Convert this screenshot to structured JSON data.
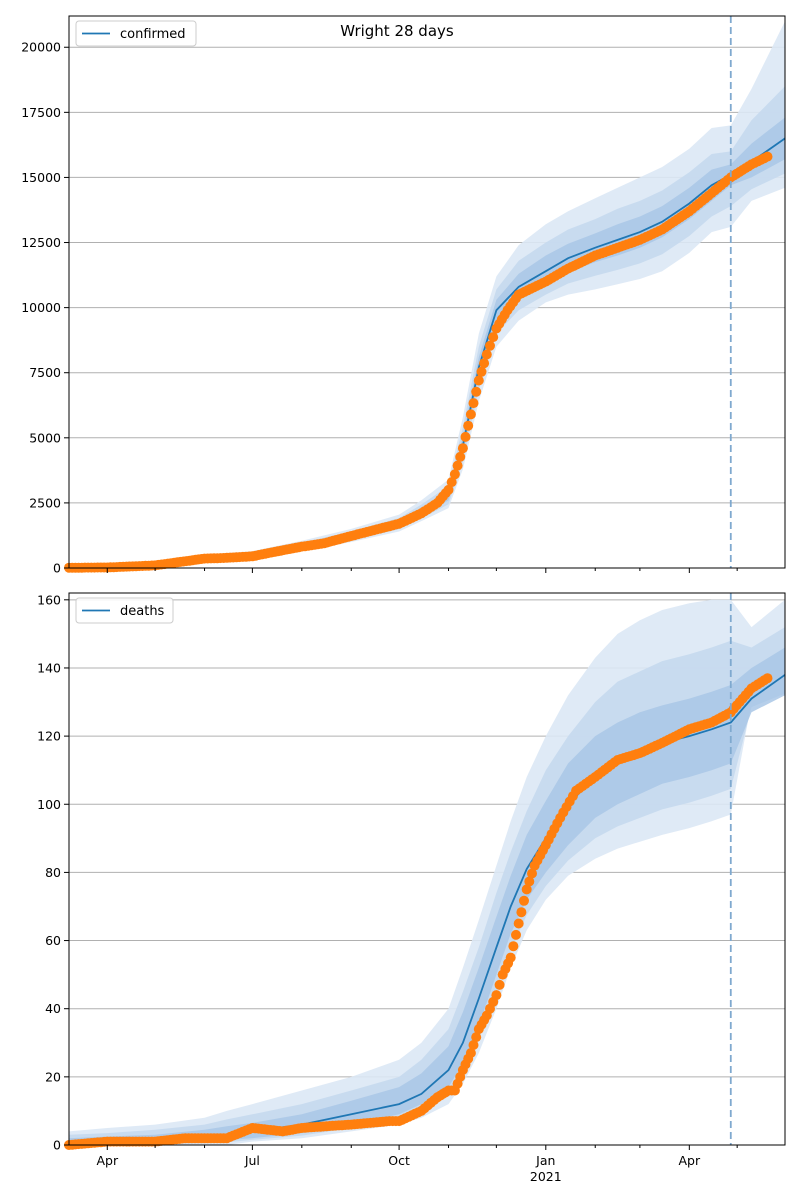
{
  "figure": {
    "title": "Wright 28 days"
  },
  "chart_data": [
    {
      "type": "line",
      "legend": "confirmed",
      "legend_position": "top-left",
      "grid": true,
      "ylim": [
        0,
        21200
      ],
      "yticks": [
        0,
        2500,
        5000,
        7500,
        10000,
        12500,
        15000,
        17500,
        20000
      ],
      "x_range": [
        "2020-03-08",
        "2021-05-31"
      ],
      "forecast_start": "2021-04-27",
      "model_line": {
        "x": [
          "2020-03-08",
          "2020-04-01",
          "2020-05-01",
          "2020-06-01",
          "2020-07-01",
          "2020-08-01",
          "2020-09-01",
          "2020-10-01",
          "2020-10-15",
          "2020-11-01",
          "2020-11-10",
          "2020-11-20",
          "2020-12-01",
          "2020-12-15",
          "2021-01-01",
          "2021-01-15",
          "2021-02-01",
          "2021-02-15",
          "2021-03-01",
          "2021-03-15",
          "2021-04-01",
          "2021-04-15",
          "2021-04-27",
          "2021-05-10",
          "2021-05-31"
        ],
        "y": [
          20,
          40,
          110,
          360,
          470,
          820,
          1230,
          1700,
          2150,
          2800,
          4700,
          7700,
          9900,
          10800,
          11400,
          11900,
          12300,
          12600,
          12900,
          13300,
          14000,
          14700,
          15100,
          15600,
          16500
        ]
      },
      "bands": [
        {
          "level": "outer",
          "upper": [
            60,
            90,
            200,
            520,
            650,
            1050,
            1500,
            2050,
            2600,
            3400,
            5800,
            9000,
            11200,
            12400,
            13200,
            13700,
            14200,
            14600,
            15000,
            15400,
            16100,
            16900,
            17000,
            18400,
            21000
          ],
          "lower": [
            0,
            10,
            50,
            250,
            330,
            640,
            1000,
            1400,
            1800,
            2300,
            3800,
            6400,
            8500,
            9500,
            10200,
            10500,
            10700,
            10900,
            11100,
            11400,
            12100,
            12900,
            13100,
            14100,
            14600
          ]
        },
        {
          "level": "middle",
          "upper": [
            45,
            70,
            170,
            470,
            590,
            970,
            1410,
            1920,
            2440,
            3150,
            5400,
            8500,
            10700,
            11800,
            12500,
            13000,
            13400,
            13800,
            14100,
            14500,
            15200,
            15900,
            16000,
            17200,
            18500
          ]
        },
        {
          "level": "inner",
          "upper": [
            30,
            55,
            140,
            420,
            530,
            900,
            1330,
            1810,
            2300,
            2980,
            5050,
            8100,
            10300,
            11300,
            12000,
            12450,
            12850,
            13200,
            13500,
            13900,
            14600,
            15300,
            15500,
            16300,
            17300
          ],
          "lower": [
            10,
            25,
            85,
            300,
            410,
            740,
            1130,
            1590,
            2000,
            2600,
            4350,
            7300,
            9500,
            10300,
            10800,
            11350,
            11750,
            12000,
            12300,
            12700,
            13400,
            14100,
            14700,
            15000,
            15700
          ]
        }
      ],
      "observed": {
        "x": [
          "2020-03-08",
          "2020-04-01",
          "2020-05-01",
          "2020-05-15",
          "2020-06-01",
          "2020-06-15",
          "2020-07-01",
          "2020-07-15",
          "2020-08-01",
          "2020-08-15",
          "2020-09-01",
          "2020-09-15",
          "2020-10-01",
          "2020-10-15",
          "2020-10-25",
          "2020-11-01",
          "2020-11-05",
          "2020-11-10",
          "2020-11-15",
          "2020-11-20",
          "2020-11-25",
          "2020-12-01",
          "2020-12-08",
          "2020-12-15",
          "2021-01-01",
          "2021-01-15",
          "2021-02-01",
          "2021-02-15",
          "2021-03-01",
          "2021-03-15",
          "2021-04-01",
          "2021-04-15",
          "2021-04-27",
          "2021-05-10",
          "2021-05-20"
        ],
        "y": [
          10,
          20,
          100,
          220,
          360,
          390,
          450,
          620,
          820,
          950,
          1230,
          1450,
          1700,
          2100,
          2500,
          3000,
          3600,
          4600,
          5900,
          7200,
          8200,
          9200,
          9900,
          10500,
          11000,
          11500,
          12000,
          12300,
          12600,
          13000,
          13700,
          14400,
          15000,
          15500,
          15800
        ]
      }
    },
    {
      "type": "line",
      "legend": "deaths",
      "legend_position": "top-left",
      "grid": true,
      "ylim": [
        0,
        162
      ],
      "yticks": [
        0,
        20,
        40,
        60,
        80,
        100,
        120,
        140,
        160
      ],
      "x_range": [
        "2020-03-08",
        "2021-05-31"
      ],
      "xtick_labels": [
        "Apr",
        "Jul",
        "Oct",
        "Jan",
        "Apr"
      ],
      "xtick_year": "2021",
      "forecast_start": "2021-04-27",
      "model_line": {
        "x": [
          "2020-03-08",
          "2020-04-01",
          "2020-05-01",
          "2020-06-01",
          "2020-06-15",
          "2020-07-01",
          "2020-08-01",
          "2020-09-01",
          "2020-10-01",
          "2020-10-15",
          "2020-11-01",
          "2020-11-10",
          "2020-11-20",
          "2020-12-01",
          "2020-12-10",
          "2020-12-20",
          "2021-01-01",
          "2021-01-15",
          "2021-02-01",
          "2021-02-15",
          "2021-03-01",
          "2021-03-15",
          "2021-04-01",
          "2021-04-15",
          "2021-04-27",
          "2021-05-10",
          "2021-05-31"
        ],
        "y": [
          1,
          1,
          1,
          2,
          3,
          4,
          6,
          9,
          12,
          15,
          22,
          30,
          43,
          58,
          70,
          81,
          90,
          100,
          108,
          112,
          115,
          118,
          120,
          122,
          124,
          131,
          138
        ]
      },
      "bands": [
        {
          "level": "outer",
          "upper": [
            4,
            5,
            6,
            8,
            10,
            12,
            16,
            20,
            25,
            30,
            40,
            52,
            66,
            82,
            95,
            108,
            120,
            132,
            143,
            150,
            154,
            157,
            159,
            160,
            160,
            152,
            160
          ],
          "lower": [
            0,
            0,
            0,
            0,
            0,
            1,
            2,
            4,
            6,
            8,
            12,
            18,
            27,
            40,
            52,
            63,
            72,
            79,
            84,
            87,
            89,
            91,
            93,
            95,
            97,
            130,
            133
          ]
        },
        {
          "level": "middle",
          "upper": [
            3,
            3.5,
            4.5,
            6,
            7.5,
            9,
            12,
            16,
            20,
            25,
            34,
            45,
            58,
            74,
            86,
            98,
            110,
            120,
            130,
            136,
            139,
            142,
            144,
            146,
            148,
            146,
            152
          ]
        },
        {
          "level": "inner",
          "upper": [
            2,
            2.5,
            3,
            4.5,
            5.5,
            6.5,
            9,
            13,
            17,
            21,
            29,
            39,
            52,
            67,
            79,
            91,
            101,
            112,
            120,
            124,
            127,
            129,
            131,
            133,
            135,
            140,
            146
          ],
          "lower": [
            0,
            0.5,
            0.5,
            1,
            1.5,
            2,
            3.5,
            6,
            9,
            12,
            17,
            24,
            35,
            50,
            62,
            72,
            80,
            88,
            96,
            100,
            103,
            106,
            108,
            110,
            112,
            127,
            132
          ]
        }
      ],
      "observed": {
        "x": [
          "2020-03-08",
          "2020-04-01",
          "2020-05-01",
          "2020-05-20",
          "2020-06-01",
          "2020-06-15",
          "2020-07-01",
          "2020-07-20",
          "2020-08-01",
          "2020-09-01",
          "2020-09-25",
          "2020-10-01",
          "2020-10-15",
          "2020-10-25",
          "2020-11-01",
          "2020-11-05",
          "2020-11-10",
          "2020-11-15",
          "2020-11-20",
          "2020-11-25",
          "2020-12-01",
          "2020-12-05",
          "2020-12-10",
          "2020-12-15",
          "2020-12-20",
          "2020-12-25",
          "2021-01-01",
          "2021-01-10",
          "2021-01-20",
          "2021-02-01",
          "2021-02-15",
          "2021-03-01",
          "2021-03-15",
          "2021-04-01",
          "2021-04-15",
          "2021-04-27",
          "2021-05-10",
          "2021-05-20"
        ],
        "y": [
          0,
          1,
          1,
          2,
          2,
          2,
          5,
          4,
          5,
          6,
          7,
          7,
          10,
          14,
          16,
          16,
          22,
          27,
          34,
          38,
          44,
          50,
          55,
          65,
          75,
          82,
          88,
          96,
          104,
          108,
          113,
          115,
          118,
          122,
          124,
          127,
          134,
          137
        ]
      }
    }
  ]
}
